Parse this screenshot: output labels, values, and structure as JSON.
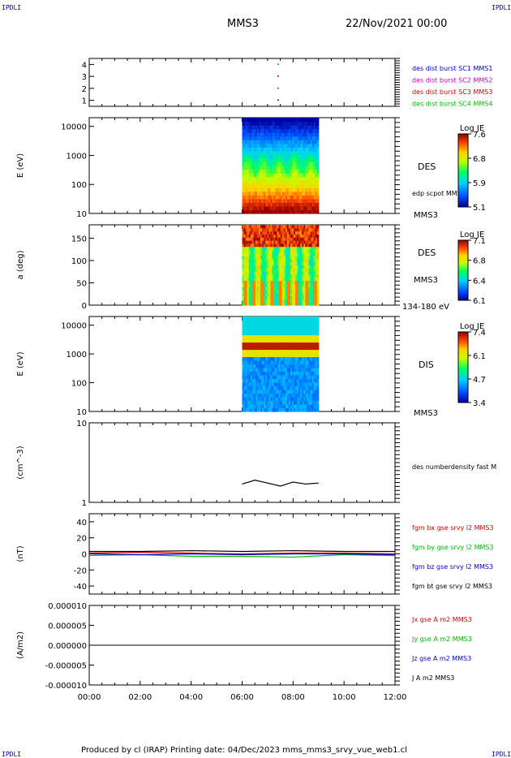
{
  "corners": {
    "tl": "IPDLI",
    "tr": "IPDLI",
    "bl": "IPDLI",
    "br": "IPDLI"
  },
  "header": {
    "spacecraft": "MMS3",
    "date": "22/Nov/2021 00:00"
  },
  "footer": "Produced by cl (IRAP)   Printing date: 04/Dec/2023   mms_mms3_srvy_vue_web1.cl",
  "chart_data": [
    {
      "type": "scatter",
      "panel": "burst",
      "yticks": [
        "1",
        "2",
        "3",
        "4"
      ],
      "ylim": [
        0.5,
        4.5
      ],
      "series": [
        {
          "name": "des dist burst SC1 MMS1",
          "color": "#0000cc",
          "x": [
            "07:25"
          ],
          "y": [
            1
          ]
        },
        {
          "name": "des dist burst SC2 MMS2",
          "color": "#cc00cc",
          "x": [
            "07:25"
          ],
          "y": [
            2
          ]
        },
        {
          "name": "des dist burst SC3 MMS3",
          "color": "#dd0000",
          "x": [
            "07:25"
          ],
          "y": [
            3
          ]
        },
        {
          "name": "des dist burst SC4 MMS4",
          "color": "#00bb00",
          "x": [
            "07:25"
          ],
          "y": [
            4
          ]
        }
      ]
    },
    {
      "type": "heatmap",
      "panel": "des_energy",
      "ylabel": "E (eV)",
      "yticks": [
        "10",
        "100",
        "1000",
        "10000"
      ],
      "scale": "log",
      "data_x_range": [
        "06:00",
        "09:00"
      ],
      "right_label": "DES",
      "side_note": "edp scpot MMS3",
      "sc_label": "MMS3",
      "colorbar": {
        "title": "Log JE",
        "ticks": [
          "7.6",
          "6.8",
          "5.9",
          "5.1"
        ]
      }
    },
    {
      "type": "heatmap",
      "panel": "des_pitch",
      "ylabel": "a (deg)",
      "yticks": [
        "0",
        "50",
        "100",
        "150"
      ],
      "ylim": [
        0,
        180
      ],
      "data_x_range": [
        "06:00",
        "09:00"
      ],
      "right_label": "DES",
      "sc_label": "MMS3",
      "energy_label": "134-180 eV",
      "colorbar": {
        "title": "Log JE",
        "ticks": [
          "7.1",
          "6.8",
          "6.4",
          "6.1"
        ]
      }
    },
    {
      "type": "heatmap",
      "panel": "dis_energy",
      "ylabel": "E (eV)",
      "yticks": [
        "10",
        "100",
        "1000",
        "10000"
      ],
      "scale": "log",
      "data_x_range": [
        "06:00",
        "09:00"
      ],
      "right_label": "DIS",
      "sc_label": "MMS3",
      "colorbar": {
        "title": "Log JE",
        "ticks": [
          "7.4",
          "6.1",
          "4.7",
          "3.4"
        ]
      }
    },
    {
      "type": "line",
      "panel": "density",
      "ylabel": "(cm^-3)",
      "yticks": [
        "1",
        "10"
      ],
      "scale": "log",
      "ylim": [
        1,
        10
      ],
      "series": [
        {
          "name": "des numberdensity fast M",
          "color": "#000000",
          "x": [
            "06:00",
            "06:30",
            "07:00",
            "07:30",
            "08:00",
            "08:30",
            "09:00"
          ],
          "y": [
            1.7,
            1.9,
            1.75,
            1.6,
            1.8,
            1.7,
            1.75
          ]
        }
      ]
    },
    {
      "type": "line",
      "panel": "b_field",
      "ylabel": "(nT)",
      "yticks": [
        "-40",
        "-20",
        "0",
        "20",
        "40"
      ],
      "ylim": [
        -50,
        50
      ],
      "series": [
        {
          "name": "fgm bx gse srvy l2 MMS3",
          "color": "#dd0000",
          "x": [
            "00:00",
            "02:00",
            "04:00",
            "06:00",
            "08:00",
            "10:00",
            "12:00"
          ],
          "y": [
            1,
            2,
            1,
            0,
            1,
            1,
            0
          ]
        },
        {
          "name": "fgm by gse srvy l2 MMS3",
          "color": "#00bb00",
          "x": [
            "00:00",
            "02:00",
            "04:00",
            "06:00",
            "08:00",
            "10:00",
            "12:00"
          ],
          "y": [
            -2,
            -1,
            -3,
            -3,
            -4,
            -1,
            -2
          ]
        },
        {
          "name": "fgm bz gse srvy l2 MMS3",
          "color": "#0000cc",
          "x": [
            "00:00",
            "02:00",
            "04:00",
            "06:00",
            "08:00",
            "10:00",
            "12:00"
          ],
          "y": [
            0,
            -1,
            0,
            -1,
            0,
            0,
            -1
          ]
        },
        {
          "name": "fgm bt gse srvy l2 MMS3",
          "color": "#000000",
          "x": [
            "00:00",
            "02:00",
            "04:00",
            "06:00",
            "08:00",
            "10:00",
            "12:00"
          ],
          "y": [
            3,
            3,
            4,
            3,
            4,
            3,
            3
          ]
        }
      ]
    },
    {
      "type": "line",
      "panel": "current",
      "ylabel": "(A/m2)",
      "yticks": [
        "-0.000010",
        "-0.000005",
        "0.000000",
        "0.000005",
        "0.000010"
      ],
      "ylim": [
        -1e-05,
        1e-05
      ],
      "xticks": [
        "00:00",
        "02:00",
        "04:00",
        "06:00",
        "08:00",
        "10:00",
        "12:00"
      ],
      "series": [
        {
          "name": "Jx gse A m2 MMS3",
          "color": "#dd0000",
          "x": [
            "00:00",
            "12:00"
          ],
          "y": [
            0,
            0
          ]
        },
        {
          "name": "Jy gse A m2 MMS3",
          "color": "#00bb00",
          "x": [
            "00:00",
            "12:00"
          ],
          "y": [
            0,
            0
          ]
        },
        {
          "name": "Jz gse A m2 MMS3",
          "color": "#0000cc",
          "x": [
            "00:00",
            "12:00"
          ],
          "y": [
            0,
            0
          ]
        },
        {
          "name": "J A m2 MMS3",
          "color": "#000000",
          "x": [
            "00:00",
            "12:00"
          ],
          "y": [
            0,
            0
          ]
        }
      ]
    }
  ]
}
